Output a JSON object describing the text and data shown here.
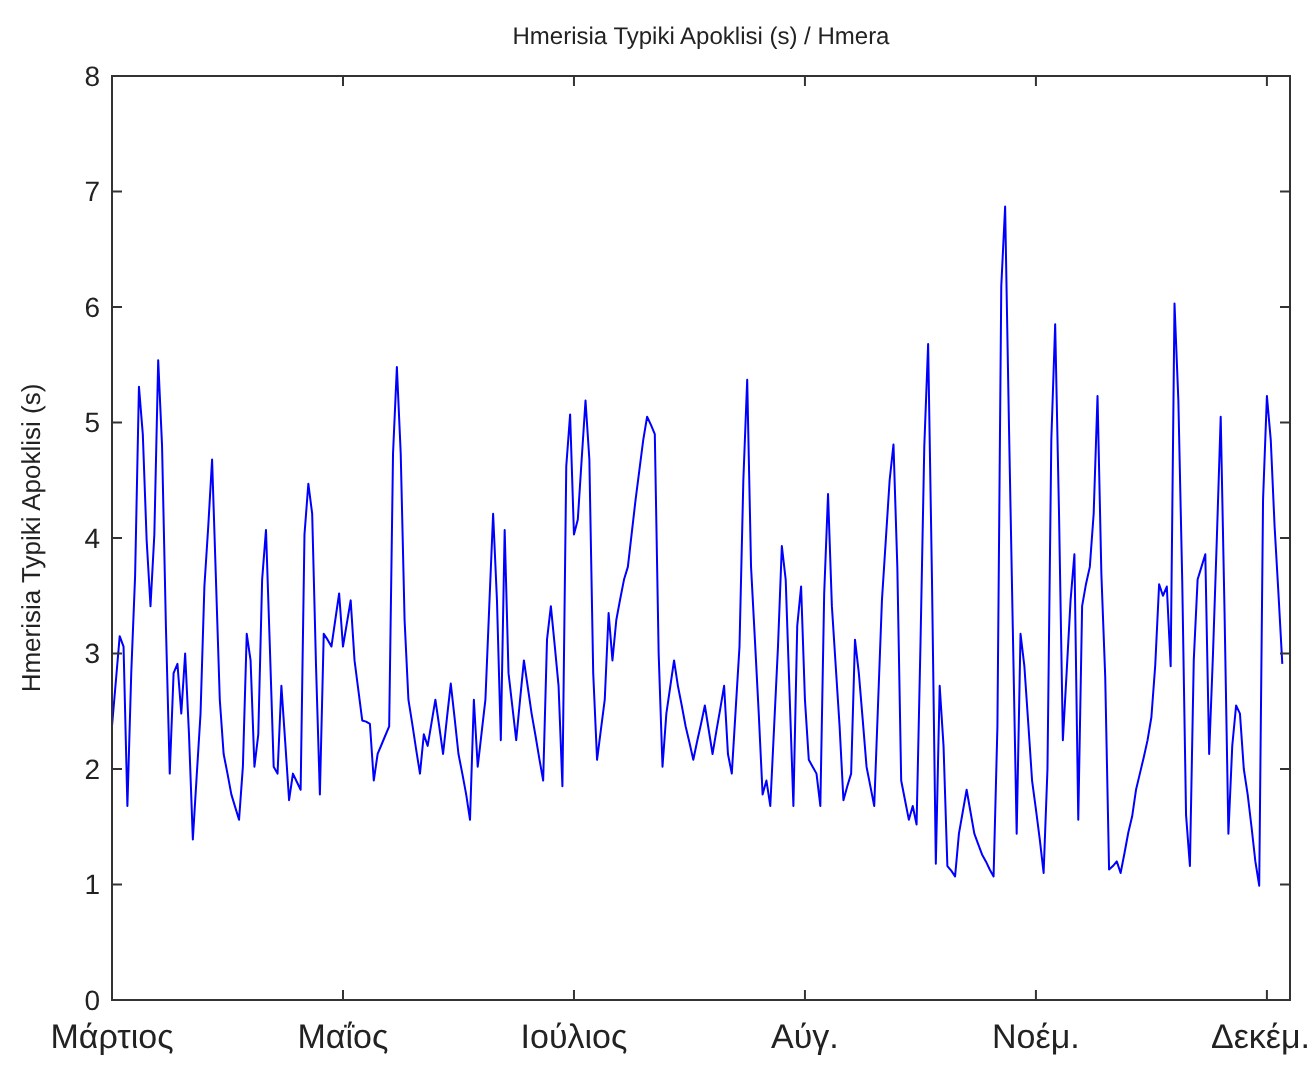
{
  "chart_data": {
    "type": "line",
    "title": "Hmerisia Typiki Apoklisi (s) / Hmera",
    "ylabel": "Hmerisia Typiki Apoklisi (s)",
    "color": "#0000ff",
    "categories": [
      "Μάρτιος",
      null,
      null,
      null,
      null,
      null,
      null,
      null,
      null,
      null,
      null,
      null,
      null,
      null,
      null,
      null,
      null,
      null,
      null,
      null,
      null,
      null,
      null,
      null,
      null,
      null,
      null,
      null,
      null,
      null,
      null,
      null,
      null,
      null,
      null,
      null,
      null,
      null,
      null,
      null,
      null,
      null,
      null,
      null,
      null,
      null,
      null,
      null,
      null,
      null,
      null,
      null,
      null,
      null,
      null,
      null,
      null,
      null,
      null,
      null,
      "Μαΐος",
      null,
      null,
      null,
      null,
      null,
      null,
      null,
      null,
      null,
      null,
      null,
      null,
      null,
      null,
      null,
      null,
      null,
      null,
      null,
      null,
      null,
      null,
      null,
      null,
      null,
      null,
      null,
      null,
      null,
      null,
      null,
      null,
      null,
      null,
      null,
      null,
      null,
      null,
      null,
      null,
      null,
      null,
      null,
      null,
      null,
      null,
      null,
      null,
      null,
      null,
      null,
      null,
      null,
      null,
      null,
      null,
      null,
      null,
      null,
      "Ιούλιος",
      null,
      null,
      null,
      null,
      null,
      null,
      null,
      null,
      null,
      null,
      null,
      null,
      null,
      null,
      null,
      null,
      null,
      null,
      null,
      null,
      null,
      null,
      null,
      null,
      null,
      null,
      null,
      null,
      null,
      null,
      null,
      null,
      null,
      null,
      null,
      null,
      null,
      null,
      null,
      null,
      null,
      null,
      null,
      null,
      null,
      null,
      null,
      null,
      null,
      null,
      null,
      null,
      null,
      null,
      null,
      null,
      null,
      null,
      null,
      "Αύγ.",
      null,
      null,
      null,
      null,
      null,
      null,
      null,
      null,
      null,
      null,
      null,
      null,
      null,
      null,
      null,
      null,
      null,
      null,
      null,
      null,
      null,
      null,
      null,
      null,
      null,
      null,
      null,
      null,
      null,
      null,
      null,
      null,
      null,
      null,
      null,
      null,
      null,
      null,
      null,
      null,
      null,
      null,
      null,
      null,
      null,
      null,
      null,
      null,
      null,
      null,
      null,
      null,
      null,
      null,
      null,
      null,
      null,
      null,
      null,
      "Νοέμ.",
      null,
      null,
      null,
      null,
      null,
      null,
      null,
      null,
      null,
      null,
      null,
      null,
      null,
      null,
      null,
      null,
      null,
      null,
      null,
      null,
      null,
      null,
      null,
      null,
      null,
      null,
      null,
      null,
      null,
      null,
      null,
      null,
      null,
      null,
      null,
      null,
      null,
      null,
      null,
      null,
      null,
      null,
      null,
      null,
      null,
      null,
      null,
      null,
      null,
      null,
      null,
      null,
      null,
      null,
      null,
      null,
      null,
      null,
      null,
      "Δεκέμ.",
      null,
      null,
      null,
      null,
      null,
      null
    ],
    "ylim": [
      0,
      8
    ],
    "yticks": [
      0,
      1,
      2,
      3,
      4,
      5,
      6,
      7,
      8
    ],
    "values": [
      2.37,
      2.76,
      3.15,
      3.06,
      1.68,
      2.83,
      3.67,
      5.31,
      4.9,
      3.98,
      3.41,
      4.03,
      5.54,
      4.8,
      3.24,
      1.96,
      2.83,
      2.91,
      2.48,
      3.0,
      2.3,
      1.39,
      1.94,
      2.48,
      3.58,
      4.1,
      4.68,
      3.64,
      2.6,
      2.13,
      1.96,
      1.78,
      1.67,
      1.56,
      2.02,
      3.17,
      2.94,
      2.02,
      2.3,
      3.64,
      4.07,
      3.06,
      2.02,
      1.96,
      2.72,
      2.23,
      1.73,
      1.96,
      1.89,
      1.82,
      4.03,
      4.47,
      4.21,
      2.89,
      1.78,
      3.17,
      3.12,
      3.06,
      3.29,
      3.52,
      3.06,
      3.26,
      3.46,
      2.94,
      2.68,
      2.42,
      2.41,
      2.39,
      1.9,
      2.13,
      2.21,
      2.29,
      2.37,
      4.73,
      5.48,
      4.73,
      3.29,
      2.6,
      2.39,
      2.17,
      1.96,
      2.3,
      2.2,
      2.4,
      2.6,
      2.37,
      2.13,
      2.44,
      2.74,
      2.44,
      2.13,
      1.96,
      1.78,
      1.56,
      2.6,
      2.02,
      2.31,
      2.6,
      3.41,
      4.21,
      3.46,
      2.25,
      4.07,
      2.83,
      2.54,
      2.25,
      2.6,
      2.94,
      2.71,
      2.48,
      2.29,
      2.09,
      1.9,
      3.12,
      3.41,
      3.07,
      2.72,
      1.85,
      4.62,
      5.07,
      4.03,
      4.16,
      4.68,
      5.19,
      4.68,
      2.83,
      2.08,
      2.34,
      2.6,
      3.35,
      2.94,
      3.29,
      3.47,
      3.64,
      3.75,
      4.04,
      4.33,
      4.59,
      4.85,
      5.05,
      4.98,
      4.9,
      3.0,
      2.02,
      2.48,
      2.71,
      2.94,
      2.72,
      2.55,
      2.37,
      2.23,
      2.08,
      2.24,
      2.39,
      2.55,
      2.34,
      2.13,
      2.33,
      2.52,
      2.72,
      2.13,
      1.96,
      2.51,
      3.06,
      4.5,
      5.37,
      3.75,
      3.12,
      2.48,
      1.78,
      1.9,
      1.68,
      2.37,
      3.06,
      3.93,
      3.64,
      2.66,
      1.68,
      3.24,
      3.58,
      2.6,
      2.08,
      2.02,
      1.96,
      1.68,
      3.52,
      4.38,
      3.41,
      2.89,
      2.37,
      1.73,
      1.85,
      1.96,
      3.12,
      2.83,
      2.43,
      2.02,
      1.85,
      1.68,
      2.57,
      3.46,
      3.98,
      4.5,
      4.81,
      3.75,
      1.9,
      1.73,
      1.56,
      1.68,
      1.52,
      3.06,
      4.79,
      5.68,
      3.64,
      1.18,
      2.72,
      2.2,
      1.16,
      1.12,
      1.07,
      1.44,
      1.63,
      1.82,
      1.63,
      1.44,
      1.35,
      1.26,
      1.2,
      1.13,
      1.07,
      2.37,
      6.18,
      6.87,
      4.97,
      3.21,
      1.44,
      3.17,
      2.89,
      2.4,
      1.9,
      1.65,
      1.39,
      1.1,
      2.0,
      4.85,
      5.85,
      4.21,
      2.25,
      2.85,
      3.46,
      3.86,
      1.56,
      3.41,
      3.6,
      3.75,
      4.21,
      5.23,
      3.69,
      2.8,
      1.13,
      1.16,
      1.2,
      1.1,
      1.27,
      1.45,
      1.59,
      1.82,
      1.96,
      2.1,
      2.25,
      2.45,
      2.9,
      3.6,
      3.5,
      3.58,
      2.89,
      6.03,
      5.19,
      3.64,
      1.6,
      1.16,
      2.94,
      3.64,
      3.75,
      3.86,
      2.13,
      3.0,
      4.0,
      5.05,
      3.35,
      1.44,
      2.2,
      2.55,
      2.48,
      2.0,
      1.78,
      1.5,
      1.2,
      0.99,
      4.33,
      5.23,
      4.85,
      4.1,
      3.52,
      2.91,
      null,
      null
    ]
  }
}
